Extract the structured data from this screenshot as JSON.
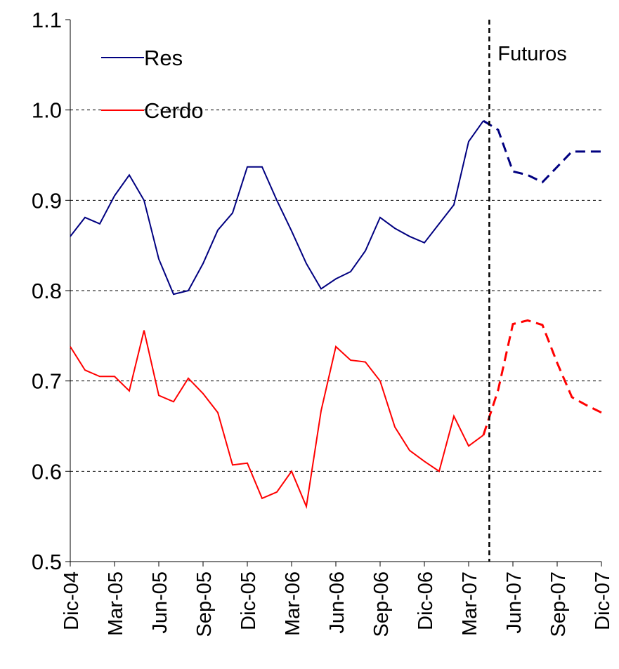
{
  "chart_data": {
    "type": "line",
    "categories": [
      "Dic-04",
      null,
      null,
      "Mar-05",
      null,
      null,
      "Jun-05",
      null,
      null,
      "Sep-05",
      null,
      null,
      "Dic-05",
      null,
      null,
      "Mar-06",
      null,
      null,
      "Jun-06",
      null,
      null,
      "Sep-06",
      null,
      null,
      "Dic-06",
      null,
      null,
      "Mar-07",
      null,
      null,
      "Jun-07",
      null,
      null,
      "Sep-07",
      null,
      null,
      "Dic-07"
    ],
    "series": [
      {
        "name": "Res",
        "color": "#000080",
        "values": [
          0.86,
          0.881,
          0.874,
          0.905,
          0.928,
          0.9,
          0.835,
          0.796,
          0.8,
          0.83,
          0.867,
          0.886,
          0.937,
          0.937,
          0.9,
          0.866,
          0.83,
          0.802,
          0.813,
          0.821,
          0.844,
          0.881,
          0.869,
          0.86,
          0.853,
          0.874,
          0.895,
          0.965,
          0.988,
          null,
          null,
          null,
          null,
          null,
          null,
          null,
          null
        ],
        "forecast_values": [
          null,
          null,
          null,
          null,
          null,
          null,
          null,
          null,
          null,
          null,
          null,
          null,
          null,
          null,
          null,
          null,
          null,
          null,
          null,
          null,
          null,
          null,
          null,
          null,
          null,
          null,
          null,
          null,
          0.988,
          0.978,
          0.932,
          0.928,
          0.92,
          0.937,
          0.954,
          0.954,
          0.954
        ]
      },
      {
        "name": "Cerdo",
        "color": "#ff0000",
        "values": [
          0.738,
          0.712,
          0.705,
          0.705,
          0.689,
          0.756,
          0.684,
          0.677,
          0.703,
          0.686,
          0.665,
          0.607,
          0.609,
          0.57,
          0.577,
          0.6,
          0.561,
          0.667,
          0.738,
          0.723,
          0.721,
          0.7,
          0.649,
          0.623,
          0.611,
          0.6,
          0.661,
          0.628,
          0.64,
          null,
          null,
          null,
          null,
          null,
          null,
          null,
          null
        ],
        "forecast_values": [
          null,
          null,
          null,
          null,
          null,
          null,
          null,
          null,
          null,
          null,
          null,
          null,
          null,
          null,
          null,
          null,
          null,
          null,
          null,
          null,
          null,
          null,
          null,
          null,
          null,
          null,
          null,
          null,
          0.64,
          0.69,
          0.763,
          0.767,
          0.762,
          0.72,
          0.682,
          0.673,
          0.665
        ]
      }
    ],
    "annotation": {
      "text": "Futuros",
      "x": 28.4
    },
    "ylim": [
      0.5,
      1.1
    ],
    "yticks": [
      0.5,
      {
        "value": 0.6,
        "label": "0.6"
      },
      {
        "value": 0.7,
        "label": "0.7"
      },
      {
        "value": 0.8,
        "label": "0.8"
      },
      {
        "value": 0.9,
        "label": "0.9"
      },
      {
        "value": 1.0,
        "label": "1.0"
      },
      1.1
    ],
    "grid": true
  }
}
